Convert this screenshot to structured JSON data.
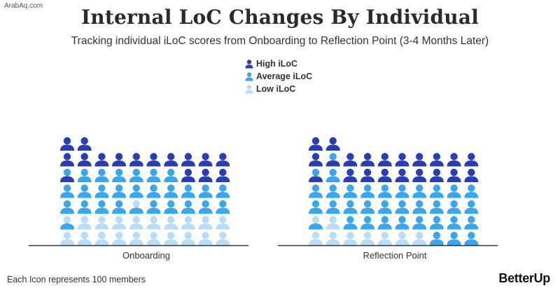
{
  "watermark": "ArabAq.com",
  "chart_data": {
    "type": "pictograph",
    "title": "Internal LoC Changes By Individual",
    "subtitle": "Tracking individual iLoC scores from Onboarding to Reflection Point (3-4 Months Later)",
    "legend": [
      {
        "name": "High iLoC",
        "color": "#2a3eb1"
      },
      {
        "name": "Average iLoC",
        "color": "#3aa6ec"
      },
      {
        "name": "Low iLoC",
        "color": "#b9dcf7"
      }
    ],
    "groups": [
      {
        "name": "Onboarding",
        "counts": [
          7,
          7,
          6,
          6,
          6,
          6,
          6,
          6,
          6,
          6
        ],
        "high": [
          2.5,
          2,
          1,
          1,
          1,
          1,
          1,
          2,
          2,
          2
        ],
        "average": [
          3,
          3,
          3,
          3,
          2.5,
          3,
          3,
          2,
          2,
          2
        ]
      },
      {
        "name": "Reflection Point",
        "counts": [
          7,
          7,
          6,
          6,
          6,
          6,
          6,
          6,
          6,
          6
        ],
        "high": [
          2.5,
          1.5,
          2,
          2,
          2,
          2,
          2,
          2,
          2,
          2
        ],
        "average": [
          3,
          3.5,
          3,
          3,
          3,
          3,
          3,
          4,
          4,
          4
        ]
      }
    ],
    "unit_note": "Each Icon represents 100 members"
  },
  "brand": "BetterUp"
}
